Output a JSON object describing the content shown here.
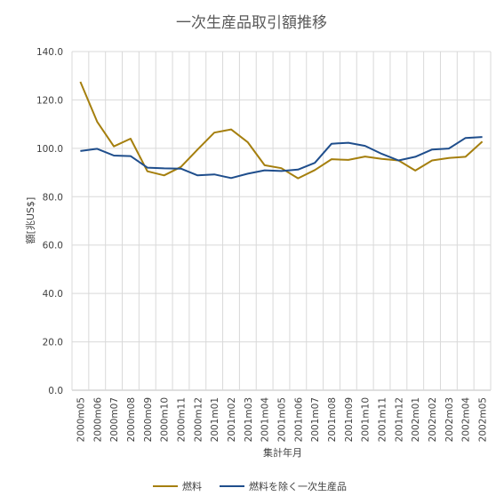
{
  "chart_data": {
    "type": "line",
    "title": "一次生産品取引額推移",
    "xlabel": "集計年月",
    "ylabel": "額[兆US$]",
    "ylim": [
      0,
      140
    ],
    "yticks": [
      "0.0",
      "20.0",
      "40.0",
      "60.0",
      "80.0",
      "100.0",
      "120.0",
      "140.0"
    ],
    "grid": true,
    "legend_position": "bottom",
    "categories": [
      "2000m05",
      "2000m06",
      "2000m07",
      "2000m08",
      "2000m09",
      "2000m10",
      "2000m11",
      "2000m12",
      "2001m01",
      "2001m02",
      "2001m03",
      "2001m04",
      "2001m05",
      "2001m06",
      "2001m07",
      "2001m08",
      "2001m09",
      "2001m10",
      "2001m11",
      "2001m12",
      "2002m01",
      "2002m02",
      "2002m03",
      "2002m04",
      "2002m05"
    ],
    "series": [
      {
        "name": "燃料",
        "color": "#a57f0e",
        "values": [
          127.5,
          111.0,
          100.8,
          104.0,
          90.5,
          88.8,
          92.3,
          99.5,
          106.5,
          107.8,
          102.5,
          93.0,
          91.8,
          87.6,
          91.0,
          95.5,
          95.2,
          96.6,
          95.6,
          95.0,
          90.8,
          95.0,
          96.0,
          96.5,
          102.8
        ]
      },
      {
        "name": "燃料を除く一次生産品",
        "color": "#1f4e8c",
        "values": [
          98.9,
          99.8,
          97.0,
          96.8,
          92.0,
          91.7,
          91.6,
          88.8,
          89.2,
          87.7,
          89.5,
          90.9,
          90.6,
          91.2,
          94.0,
          101.9,
          102.3,
          101.0,
          97.7,
          95.0,
          96.5,
          99.5,
          99.9,
          104.3,
          104.7
        ]
      }
    ]
  }
}
